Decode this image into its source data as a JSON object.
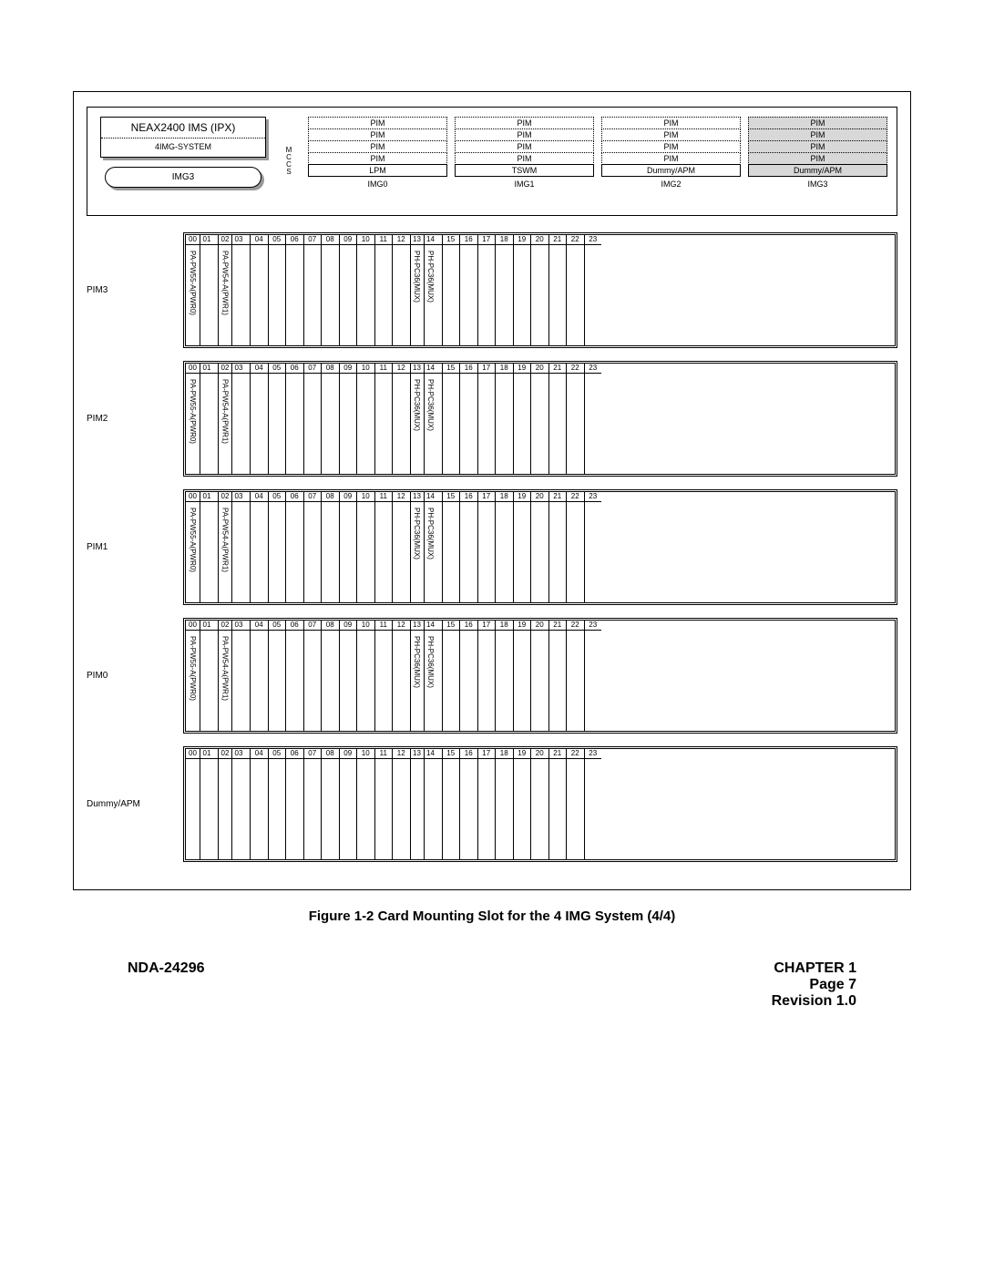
{
  "header": {
    "title": "NEAX2400 IMS (IPX)",
    "subtitle": "4IMG-SYSTEM",
    "selected_img": "IMG3",
    "mccs_label": "MCCS",
    "columns": [
      {
        "cells": [
          "PIM",
          "PIM",
          "PIM",
          "PIM",
          "LPM"
        ],
        "shaded": [
          false,
          false,
          false,
          false,
          false
        ],
        "footer": "IMG0"
      },
      {
        "cells": [
          "PIM",
          "PIM",
          "PIM",
          "PIM",
          "TSWM"
        ],
        "shaded": [
          false,
          false,
          false,
          false,
          false
        ],
        "footer": "IMG1"
      },
      {
        "cells": [
          "PIM",
          "PIM",
          "PIM",
          "PIM",
          "Dummy/APM"
        ],
        "shaded": [
          false,
          false,
          false,
          false,
          false
        ],
        "footer": "IMG2"
      },
      {
        "cells": [
          "PIM",
          "PIM",
          "PIM",
          "PIM",
          "Dummy/APM"
        ],
        "shaded": [
          true,
          true,
          true,
          true,
          true
        ],
        "footer": "IMG3"
      }
    ]
  },
  "slot_numbers": [
    "00",
    "01",
    "02",
    "03",
    "04",
    "05",
    "06",
    "07",
    "08",
    "09",
    "10",
    "11",
    "12",
    "13",
    "14",
    "15",
    "16",
    "17",
    "18",
    "19",
    "20",
    "21",
    "22",
    "23"
  ],
  "slot_widths": [
    "wnarrow",
    "wnarrow",
    "wnarrow",
    "wnarrow",
    "wnormal",
    "wnormal",
    "wnormal",
    "wnormal",
    "wnormal",
    "wnormal",
    "wnormal",
    "wnormal",
    "wnormal",
    "wnarrow",
    "wnarrow",
    "wnormal",
    "wnormal",
    "wnormal",
    "wnormal",
    "wnormal",
    "wnormal",
    "wnormal",
    "wnormal",
    "wnormal"
  ],
  "gap_after": [
    1,
    3,
    14
  ],
  "racks": [
    {
      "label": "PIM3",
      "cards": {
        "00": "PA-PW55-A(PWR0)",
        "02": "PA-PW54-A(PWR1)",
        "13": "PH-PC36(MUX)",
        "14": "PH-PC36(MUX)"
      }
    },
    {
      "label": "PIM2",
      "cards": {
        "00": "PA-PW55-A(PWR0)",
        "02": "PA-PW54-A(PWR1)",
        "13": "PH-PC36(MUX)",
        "14": "PH-PC36(MUX)"
      }
    },
    {
      "label": "PIM1",
      "cards": {
        "00": "PA-PW55-A(PWR0)",
        "02": "PA-PW54-A(PWR1)",
        "13": "PH-PC36(MUX)",
        "14": "PH-PC36(MUX)"
      }
    },
    {
      "label": "PIM0",
      "cards": {
        "00": "PA-PW55-A(PWR0)",
        "02": "PA-PW54-A(PWR1)",
        "13": "PH-PC36(MUX)",
        "14": "PH-PC36(MUX)"
      }
    },
    {
      "label": "Dummy/APM",
      "cards": {}
    }
  ],
  "caption": "Figure 1-2   Card Mounting Slot for the 4 IMG System (4/4)",
  "footer": {
    "left": "NDA-24296",
    "right_lines": [
      "CHAPTER 1",
      "Page 7",
      "Revision 1.0"
    ]
  }
}
